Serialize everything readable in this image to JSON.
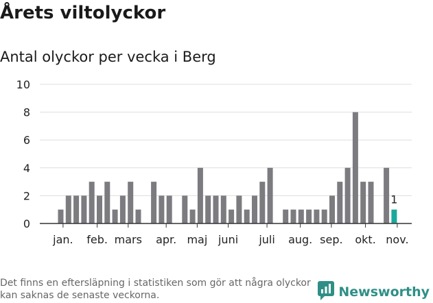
{
  "title": "Årets viltolyckor",
  "subtitle": "Antal olyckor per vecka i Berg",
  "footnote": "Det finns en eftersläpning i statistiken som gör att några olyckor kan saknas de senaste veckorna.",
  "brand": {
    "name": "Newsworthy",
    "icon": "newsworthy-logo-icon"
  },
  "colors": {
    "bar": "#7b7b80",
    "highlight": "#1ba89c",
    "grid": "#dddddd",
    "axis": "#333333",
    "text": "#222222"
  },
  "chart_data": {
    "type": "bar",
    "title": "Antal olyckor per vecka i Berg",
    "xlabel": "",
    "ylabel": "",
    "ylim": [
      0,
      10
    ],
    "yticks": [
      0,
      2,
      4,
      6,
      8,
      10
    ],
    "weeks": [
      1,
      2,
      3,
      4,
      5,
      6,
      7,
      8,
      9,
      10,
      11,
      12,
      13,
      14,
      15,
      16,
      17,
      18,
      19,
      20,
      21,
      22,
      23,
      24,
      25,
      26,
      27,
      28,
      29,
      30,
      31,
      32,
      33,
      34,
      35,
      36,
      37,
      38,
      39,
      40,
      41,
      42,
      43,
      44,
      45
    ],
    "values": [
      1,
      2,
      2,
      2,
      3,
      2,
      3,
      1,
      2,
      3,
      1,
      0,
      3,
      2,
      2,
      0,
      2,
      1,
      4,
      2,
      2,
      2,
      1,
      2,
      1,
      2,
      3,
      4,
      0,
      1,
      1,
      1,
      1,
      1,
      1,
      2,
      3,
      4,
      8,
      3,
      3,
      0,
      4,
      1,
      0
    ],
    "highlight_index": 43,
    "highlight_label": "1",
    "month_labels": [
      {
        "label": "jan.",
        "at_week": 1.3
      },
      {
        "label": "feb.",
        "at_week": 5.7
      },
      {
        "label": "mars",
        "at_week": 9.7
      },
      {
        "label": "apr.",
        "at_week": 14.6
      },
      {
        "label": "maj",
        "at_week": 18.6
      },
      {
        "label": "juni",
        "at_week": 22.6
      },
      {
        "label": "juli",
        "at_week": 27.6
      },
      {
        "label": "aug.",
        "at_week": 31.9
      },
      {
        "label": "sep.",
        "at_week": 35.9
      },
      {
        "label": "okt.",
        "at_week": 40.3
      },
      {
        "label": "nov.",
        "at_week": 44.4
      }
    ]
  }
}
